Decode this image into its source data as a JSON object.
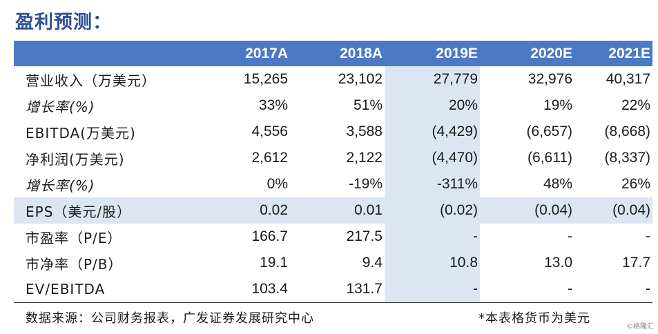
{
  "title": "盈利预测：",
  "table": {
    "headers": [
      "",
      "2017A",
      "2018A",
      "2019E",
      "2020E",
      "2021E"
    ],
    "rows": [
      {
        "label": "营业收入（万美元）",
        "values": [
          "15,265",
          "23,102",
          "27,779",
          "32,976",
          "40,317"
        ]
      },
      {
        "label": "增长率(%)",
        "values": [
          "33%",
          "51%",
          "20%",
          "19%",
          "22%"
        ]
      },
      {
        "label": "EBITDA(万美元)",
        "values": [
          "4,556",
          "3,588",
          "(4,429)",
          "(6,657)",
          "(8,668)"
        ]
      },
      {
        "label": "净利润(万美元)",
        "values": [
          "2,612",
          "2,122",
          "(4,470)",
          "(6,611)",
          "(8,337)"
        ]
      },
      {
        "label": "增长率(%)",
        "values": [
          "0%",
          "-19%",
          "-311%",
          "48%",
          "26%"
        ]
      },
      {
        "label": "EPS（美元/股）",
        "values": [
          "0.02",
          "0.01",
          "(0.02)",
          "(0.04)",
          "(0.04)"
        ]
      },
      {
        "label": "市盈率（P/E）",
        "values": [
          "166.7",
          "217.5",
          "-",
          "-",
          "-"
        ]
      },
      {
        "label": "市净率（P/B）",
        "values": [
          "19.1",
          "9.4",
          "10.8",
          "13.0",
          "17.7"
        ]
      },
      {
        "label": "EV/EBITDA",
        "values": [
          "103.4",
          "131.7",
          "-",
          "-",
          "-"
        ]
      }
    ]
  },
  "footer": {
    "source": "数据来源：公司财务报表，广发证券发展研究中心",
    "note": "*本表格货币为美元"
  },
  "watermark": "©格隆汇",
  "colors": {
    "header_bg": "#4b79c4",
    "highlight_bg": "#dce6f2",
    "title": "#2f4f8f"
  }
}
